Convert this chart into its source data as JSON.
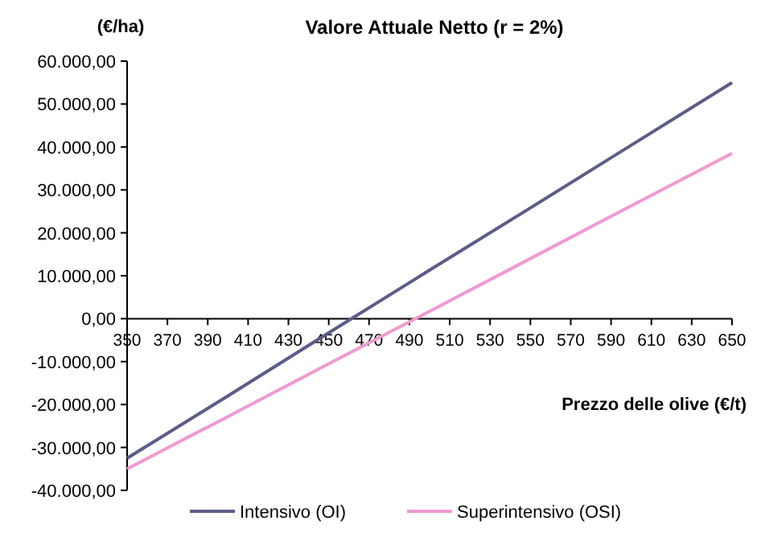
{
  "chart_data": {
    "type": "line",
    "title": "Valore Attuale Netto (r = 2%)",
    "xlabel": "Prezzo delle olive (€/t)",
    "ylabel": "(€/ha)",
    "x": [
      350,
      400,
      450,
      500,
      550,
      600,
      650
    ],
    "series": [
      {
        "name": "Intensivo (OI)",
        "color": "#5c5c8a",
        "values": [
          -32500,
          -18000,
          -3300,
          11300,
          25800,
          40400,
          55000
        ]
      },
      {
        "name": "Superintensivo (OSI)",
        "color": "#f09ad0",
        "values": [
          -35000,
          -22800,
          -10500,
          1700,
          14000,
          26300,
          38500
        ]
      }
    ],
    "xlim": [
      350,
      650
    ],
    "xticks": [
      350,
      370,
      390,
      410,
      430,
      450,
      470,
      490,
      510,
      530,
      550,
      570,
      590,
      610,
      630,
      650
    ],
    "ylim": [
      -40000,
      60000
    ],
    "yticks": [
      {
        "value": -40000,
        "label": "-40.000,00"
      },
      {
        "value": -30000,
        "label": "-30.000,00"
      },
      {
        "value": -20000,
        "label": "-20.000,00"
      },
      {
        "value": -10000,
        "label": "-10.000,00"
      },
      {
        "value": 0,
        "label": "0,00"
      },
      {
        "value": 10000,
        "label": "10.000,00"
      },
      {
        "value": 20000,
        "label": "20.000,00"
      },
      {
        "value": 30000,
        "label": "30.000,00"
      },
      {
        "value": 40000,
        "label": "40.000,00"
      },
      {
        "value": 50000,
        "label": "50.000,00"
      },
      {
        "value": 60000,
        "label": "60.000,00"
      }
    ],
    "legend": "bottom",
    "grid": false,
    "marker": "none",
    "line_style": "solid"
  }
}
